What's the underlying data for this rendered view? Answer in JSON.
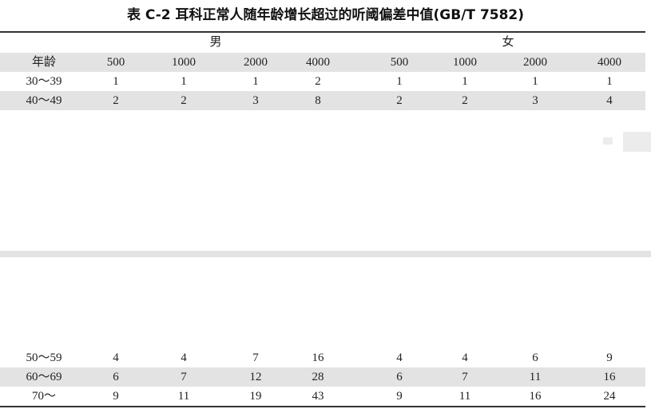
{
  "title": "表 C-2 耳科正常人随年龄增长超过的听阈偏差中值(GB/T 7582)",
  "groups": [
    "男",
    "女"
  ],
  "header": [
    "年龄",
    "500",
    "1000",
    "2000",
    "4000",
    "500",
    "1000",
    "2000",
    "4000"
  ],
  "rows_top": [
    [
      "30～39",
      "1",
      "1",
      "1",
      "2",
      "1",
      "1",
      "1",
      "1"
    ],
    [
      "40～49",
      "2",
      "2",
      "3",
      "8",
      "2",
      "2",
      "3",
      "4"
    ]
  ],
  "rows_bottom": [
    [
      "50～59",
      "4",
      "4",
      "7",
      "16",
      "4",
      "4",
      "6",
      "9"
    ],
    [
      "60～69",
      "6",
      "7",
      "12",
      "28",
      "6",
      "7",
      "11",
      "16"
    ],
    [
      "70～",
      "9",
      "11",
      "19",
      "43",
      "9",
      "11",
      "16",
      "24"
    ]
  ]
}
